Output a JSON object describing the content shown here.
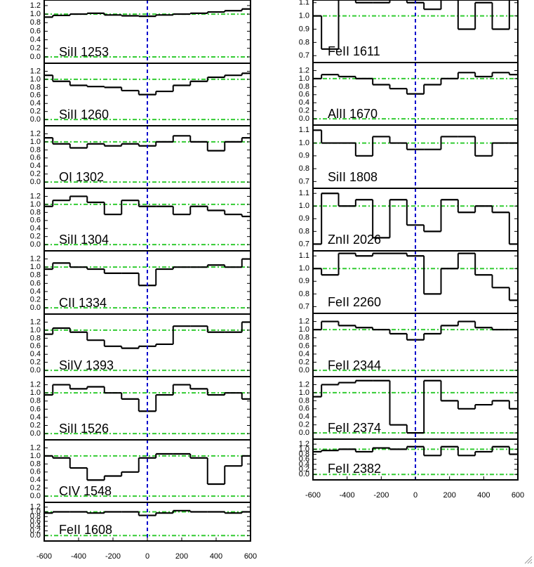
{
  "chart_data": [
    {
      "type": "line",
      "label": "SiII 1253",
      "x": [
        -600,
        -500,
        -400,
        -300,
        -200,
        -100,
        0,
        100,
        200,
        300,
        400,
        500,
        600
      ],
      "values": [
        0.93,
        0.97,
        1.0,
        1.02,
        0.98,
        0.96,
        0.95,
        0.98,
        1.0,
        1.02,
        1.05,
        1.08,
        1.12
      ],
      "xlim": [
        -600,
        600
      ],
      "ylim": [
        -0.05,
        1.33
      ],
      "yticks": [
        {
          "value": 0,
          "label": "0.0"
        },
        0.2,
        0.4,
        0.6,
        0.8,
        {
          "value": 1,
          "label": "1.0"
        },
        1.2
      ],
      "hlines": [
        0,
        1
      ],
      "vline": 0,
      "color": "#000000",
      "ref_color": "#33cc33",
      "vline_color": "#0000cc"
    },
    {
      "type": "line",
      "label": "SiII 1260",
      "x": [
        -600,
        -500,
        -400,
        -300,
        -200,
        -100,
        0,
        100,
        200,
        300,
        400,
        500,
        600
      ],
      "values": [
        1.1,
        0.95,
        0.85,
        0.82,
        0.8,
        0.72,
        0.62,
        0.7,
        0.85,
        0.95,
        1.05,
        1.1,
        1.15
      ],
      "xlim": [
        -600,
        600
      ],
      "ylim": [
        -0.05,
        1.4
      ],
      "yticks": [
        {
          "value": 0,
          "label": "0.0"
        },
        0.2,
        0.4,
        0.6,
        0.8,
        {
          "value": 1,
          "label": "1.0"
        },
        1.2
      ],
      "hlines": [
        0,
        1
      ],
      "vline": 0,
      "color": "#000000",
      "ref_color": "#33cc33",
      "vline_color": "#0000cc"
    },
    {
      "type": "line",
      "label": "OI 1302",
      "x": [
        -600,
        -500,
        -400,
        -300,
        -200,
        -100,
        0,
        100,
        200,
        300,
        400,
        500,
        600
      ],
      "values": [
        1.1,
        0.95,
        0.85,
        0.95,
        0.9,
        0.95,
        0.9,
        1.0,
        1.15,
        1.0,
        0.78,
        1.0,
        1.1
      ],
      "xlim": [
        -600,
        600
      ],
      "ylim": [
        -0.05,
        1.4
      ],
      "yticks": [
        {
          "value": 0,
          "label": "0.0"
        },
        0.2,
        0.4,
        0.6,
        0.8,
        {
          "value": 1,
          "label": "1.0"
        },
        1.2
      ],
      "hlines": [
        0,
        1
      ],
      "vline": 0,
      "color": "#000000",
      "ref_color": "#33cc33",
      "vline_color": "#0000cc"
    },
    {
      "type": "line",
      "label": "SiII 1304",
      "x": [
        -600,
        -500,
        -400,
        -300,
        -200,
        -100,
        0,
        100,
        200,
        300,
        400,
        500,
        600
      ],
      "values": [
        0.95,
        1.1,
        1.2,
        1.05,
        0.75,
        1.1,
        0.95,
        0.95,
        0.75,
        0.95,
        0.85,
        0.75,
        0.7
      ],
      "xlim": [
        -600,
        600
      ],
      "ylim": [
        -0.05,
        1.4
      ],
      "yticks": [
        {
          "value": 0,
          "label": "0.0"
        },
        0.2,
        0.4,
        0.6,
        0.8,
        {
          "value": 1,
          "label": "1.0"
        },
        1.2
      ],
      "hlines": [
        0,
        1
      ],
      "vline": 0,
      "color": "#000000",
      "ref_color": "#33cc33",
      "vline_color": "#0000cc"
    },
    {
      "type": "line",
      "label": "CII 1334",
      "x": [
        -600,
        -500,
        -400,
        -300,
        -200,
        -100,
        0,
        100,
        200,
        300,
        400,
        500,
        600
      ],
      "values": [
        0.95,
        1.1,
        1.0,
        0.95,
        0.85,
        0.85,
        0.55,
        0.95,
        1.0,
        1.0,
        1.05,
        1.0,
        1.2
      ],
      "xlim": [
        -600,
        600
      ],
      "ylim": [
        -0.05,
        1.4
      ],
      "yticks": [
        {
          "value": 0,
          "label": "0.0"
        },
        0.2,
        0.4,
        0.6,
        0.8,
        {
          "value": 1,
          "label": "1.0"
        },
        1.2
      ],
      "hlines": [
        0,
        1
      ],
      "vline": 0,
      "color": "#000000",
      "ref_color": "#33cc33",
      "vline_color": "#0000cc"
    },
    {
      "type": "line",
      "label": "SiIV 1393",
      "x": [
        -600,
        -500,
        -400,
        -300,
        -200,
        -100,
        0,
        100,
        200,
        300,
        400,
        500,
        600
      ],
      "values": [
        0.9,
        1.05,
        0.95,
        0.75,
        0.6,
        0.55,
        0.6,
        0.65,
        1.1,
        1.1,
        0.95,
        0.95,
        1.2
      ],
      "xlim": [
        -600,
        600
      ],
      "ylim": [
        -0.05,
        1.4
      ],
      "yticks": [
        {
          "value": 0,
          "label": "0.0"
        },
        0.2,
        0.4,
        0.6,
        0.8,
        {
          "value": 1,
          "label": "1.0"
        },
        1.2
      ],
      "hlines": [
        0,
        1
      ],
      "vline": 0,
      "color": "#000000",
      "ref_color": "#33cc33",
      "vline_color": "#0000cc"
    },
    {
      "type": "line",
      "label": "SiII 1526",
      "x": [
        -600,
        -500,
        -400,
        -300,
        -200,
        -100,
        0,
        100,
        200,
        300,
        400,
        500,
        600
      ],
      "values": [
        0.95,
        1.2,
        1.1,
        1.15,
        1.0,
        0.85,
        0.55,
        0.95,
        1.2,
        1.1,
        0.95,
        1.0,
        0.85
      ],
      "xlim": [
        -600,
        600
      ],
      "ylim": [
        -0.05,
        1.4
      ],
      "yticks": [
        {
          "value": 0,
          "label": "0.0"
        },
        0.2,
        0.4,
        0.6,
        0.8,
        {
          "value": 1,
          "label": "1.0"
        },
        1.2
      ],
      "hlines": [
        0,
        1
      ],
      "vline": 0,
      "color": "#000000",
      "ref_color": "#33cc33",
      "vline_color": "#0000cc"
    },
    {
      "type": "line",
      "label": "CIV 1548",
      "x": [
        -600,
        -500,
        -400,
        -300,
        -200,
        -100,
        0,
        100,
        200,
        300,
        400,
        500,
        600
      ],
      "values": [
        1.0,
        0.95,
        0.7,
        0.4,
        0.5,
        0.6,
        0.95,
        1.05,
        1.05,
        0.95,
        0.3,
        0.75,
        1.0
      ],
      "xlim": [
        -600,
        600
      ],
      "ylim": [
        -0.05,
        1.4
      ],
      "yticks": [
        {
          "value": 0,
          "label": "0.0"
        },
        0.2,
        0.4,
        0.6,
        0.8,
        {
          "value": 1,
          "label": "1.0"
        },
        1.2
      ],
      "hlines": [
        0,
        1
      ],
      "vline": 0,
      "color": "#000000",
      "ref_color": "#33cc33",
      "vline_color": "#0000cc"
    },
    {
      "type": "line",
      "label": "FeII 1608",
      "x": [
        -600,
        -500,
        -400,
        -300,
        -200,
        -100,
        0,
        100,
        200,
        300,
        400,
        500,
        600
      ],
      "values": [
        0.95,
        1.0,
        1.0,
        0.95,
        1.0,
        1.0,
        0.85,
        0.95,
        1.05,
        1.0,
        1.0,
        0.95,
        1.0
      ],
      "xlim": [
        -600,
        600
      ],
      "ylim": [
        -0.05,
        1.4
      ],
      "yticks": [
        {
          "value": 0,
          "label": "0.0"
        },
        0.2,
        0.4,
        0.6,
        0.8,
        {
          "value": 1,
          "label": "1.0"
        },
        1.2
      ],
      "xticks": [
        -600,
        -400,
        -200,
        0,
        200,
        400,
        600
      ],
      "hlines": [
        0,
        1
      ],
      "vline": 0,
      "color": "#000000",
      "ref_color": "#33cc33",
      "vline_color": "#0000cc"
    },
    {
      "type": "line",
      "label": "FeII 1611",
      "x": [
        -600,
        -500,
        -400,
        -300,
        -200,
        -100,
        0,
        100,
        200,
        300,
        400,
        500,
        600
      ],
      "values": [
        1.0,
        0.75,
        1.15,
        1.1,
        1.1,
        1.15,
        1.1,
        1.05,
        1.15,
        0.9,
        1.1,
        0.9,
        1.15
      ],
      "xlim": [
        -600,
        600
      ],
      "ylim": [
        0.68,
        1.12
      ],
      "yticks": [
        0.7,
        0.8,
        0.9,
        {
          "value": 1,
          "label": "1.0"
        },
        1.1
      ],
      "hlines": [
        1
      ],
      "vline": 0,
      "color": "#000000",
      "ref_color": "#33cc33",
      "vline_color": "#0000cc"
    },
    {
      "type": "line",
      "label": "AlII 1670",
      "x": [
        -600,
        -500,
        -400,
        -300,
        -200,
        -100,
        0,
        100,
        200,
        300,
        400,
        500,
        600
      ],
      "values": [
        1.0,
        1.1,
        1.05,
        1.0,
        0.85,
        0.75,
        0.62,
        0.85,
        1.0,
        1.15,
        1.05,
        1.15,
        1.1
      ],
      "xlim": [
        -600,
        600
      ],
      "ylim": [
        -0.05,
        1.4
      ],
      "yticks": [
        {
          "value": 0,
          "label": "0.0"
        },
        0.2,
        0.4,
        0.6,
        0.8,
        {
          "value": 1,
          "label": "1.0"
        },
        1.2
      ],
      "hlines": [
        0,
        1
      ],
      "vline": 0,
      "color": "#000000",
      "ref_color": "#33cc33",
      "vline_color": "#0000cc"
    },
    {
      "type": "line",
      "label": "SiII 1808",
      "x": [
        -600,
        -500,
        -400,
        -300,
        -200,
        -100,
        0,
        100,
        200,
        300,
        400,
        500,
        600
      ],
      "values": [
        1.1,
        1.0,
        1.0,
        0.9,
        1.05,
        1.0,
        0.95,
        0.95,
        1.05,
        1.05,
        0.9,
        1.0,
        1.0
      ],
      "xlim": [
        -600,
        600
      ],
      "ylim": [
        0.68,
        1.14
      ],
      "yticks": [
        0.7,
        0.8,
        0.9,
        {
          "value": 1,
          "label": "1.0"
        },
        1.1
      ],
      "hlines": [
        1
      ],
      "vline": 0,
      "color": "#000000",
      "ref_color": "#33cc33",
      "vline_color": "#0000cc"
    },
    {
      "type": "line",
      "label": "ZnII 2026",
      "x": [
        -600,
        -500,
        -400,
        -300,
        -200,
        -100,
        0,
        100,
        200,
        300,
        400,
        500,
        600
      ],
      "values": [
        0.7,
        1.1,
        1.0,
        1.05,
        0.75,
        1.05,
        0.85,
        0.8,
        1.05,
        0.95,
        1.0,
        0.95,
        0.7
      ],
      "xlim": [
        -600,
        600
      ],
      "ylim": [
        0.68,
        1.14
      ],
      "yticks": [
        0.7,
        0.8,
        0.9,
        {
          "value": 1,
          "label": "1.0"
        },
        1.1
      ],
      "hlines": [
        1
      ],
      "vline": 0,
      "color": "#000000",
      "ref_color": "#33cc33",
      "vline_color": "#0000cc"
    },
    {
      "type": "line",
      "label": "FeII 2260",
      "x": [
        -600,
        -500,
        -400,
        -300,
        -200,
        -100,
        0,
        100,
        200,
        300,
        400,
        500,
        600
      ],
      "values": [
        1.0,
        0.95,
        1.12,
        1.1,
        1.12,
        1.12,
        1.1,
        0.8,
        1.0,
        1.12,
        0.95,
        0.85,
        0.75
      ],
      "xlim": [
        -600,
        600
      ],
      "ylim": [
        0.68,
        1.14
      ],
      "yticks": [
        0.7,
        0.8,
        0.9,
        {
          "value": 1,
          "label": "1.0"
        },
        1.1
      ],
      "hlines": [
        1
      ],
      "vline": 0,
      "color": "#000000",
      "ref_color": "#33cc33",
      "vline_color": "#0000cc"
    },
    {
      "type": "line",
      "label": "FeII 2344",
      "x": [
        -600,
        -500,
        -400,
        -300,
        -200,
        -100,
        0,
        100,
        200,
        300,
        400,
        500,
        600
      ],
      "values": [
        1.0,
        1.2,
        1.1,
        1.05,
        1.0,
        0.9,
        0.75,
        0.9,
        1.1,
        1.2,
        1.05,
        1.0,
        1.0
      ],
      "xlim": [
        -600,
        600
      ],
      "ylim": [
        -0.05,
        1.4
      ],
      "yticks": [
        {
          "value": 0,
          "label": "0.0"
        },
        0.2,
        0.4,
        0.6,
        0.8,
        {
          "value": 1,
          "label": "1.0"
        },
        1.2
      ],
      "hlines": [
        0,
        1
      ],
      "vline": 0,
      "color": "#000000",
      "ref_color": "#33cc33",
      "vline_color": "#0000cc"
    },
    {
      "type": "line",
      "label": "FeII 2374",
      "x": [
        -600,
        -500,
        -400,
        -300,
        -200,
        -100,
        0,
        100,
        200,
        300,
        400,
        500,
        600
      ],
      "values": [
        0.9,
        1.2,
        1.25,
        1.3,
        1.3,
        0.2,
        0.0,
        1.3,
        0.8,
        0.6,
        0.7,
        0.8,
        0.6
      ],
      "xlim": [
        -600,
        600
      ],
      "ylim": [
        -0.05,
        1.4
      ],
      "yticks": [
        {
          "value": 0,
          "label": "0.0"
        },
        0.2,
        0.4,
        0.6,
        0.8,
        {
          "value": 1,
          "label": "1.0"
        },
        1.2
      ],
      "hlines": [
        0,
        1
      ],
      "vline": 0,
      "color": "#000000",
      "ref_color": "#33cc33",
      "vline_color": "#0000cc"
    },
    {
      "type": "line",
      "label": "FeII 2382",
      "x": [
        -600,
        -500,
        -400,
        -300,
        -200,
        -100,
        0,
        100,
        200,
        300,
        400,
        500,
        600
      ],
      "values": [
        0.9,
        0.95,
        1.0,
        0.9,
        1.05,
        1.0,
        1.1,
        0.75,
        1.1,
        0.75,
        0.9,
        1.1,
        0.8
      ],
      "xlim": [
        -600,
        600
      ],
      "ylim": [
        -0.05,
        1.4
      ],
      "yticks": [
        {
          "value": 0,
          "label": "0.0"
        },
        0.2,
        0.4,
        0.6,
        0.8,
        {
          "value": 1,
          "label": "1.0"
        },
        1.2
      ],
      "xticks": [
        -600,
        -400,
        -200,
        0,
        200,
        400,
        600
      ],
      "hlines": [
        0,
        1
      ],
      "vline": 0,
      "color": "#000000",
      "ref_color": "#33cc33",
      "vline_color": "#0000cc"
    }
  ]
}
